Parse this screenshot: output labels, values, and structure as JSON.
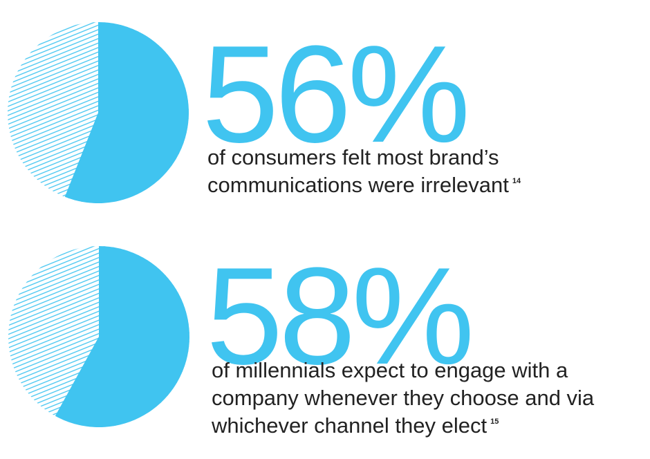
{
  "chart_data": [
    {
      "type": "pie",
      "values": [
        56
      ],
      "value_labels": [
        "56%"
      ],
      "color": "#40c4f0",
      "caption": [
        "of consumers felt most brand’s",
        "communications were irrelevant"
      ],
      "footnote": "14"
    },
    {
      "type": "pie",
      "values": [
        58
      ],
      "value_labels": [
        "58%"
      ],
      "color": "#40c4f0",
      "caption": [
        "of millennials expect to engage with a",
        "company whenever they choose and via",
        "whichever channel they elect"
      ],
      "footnote": "15"
    }
  ]
}
